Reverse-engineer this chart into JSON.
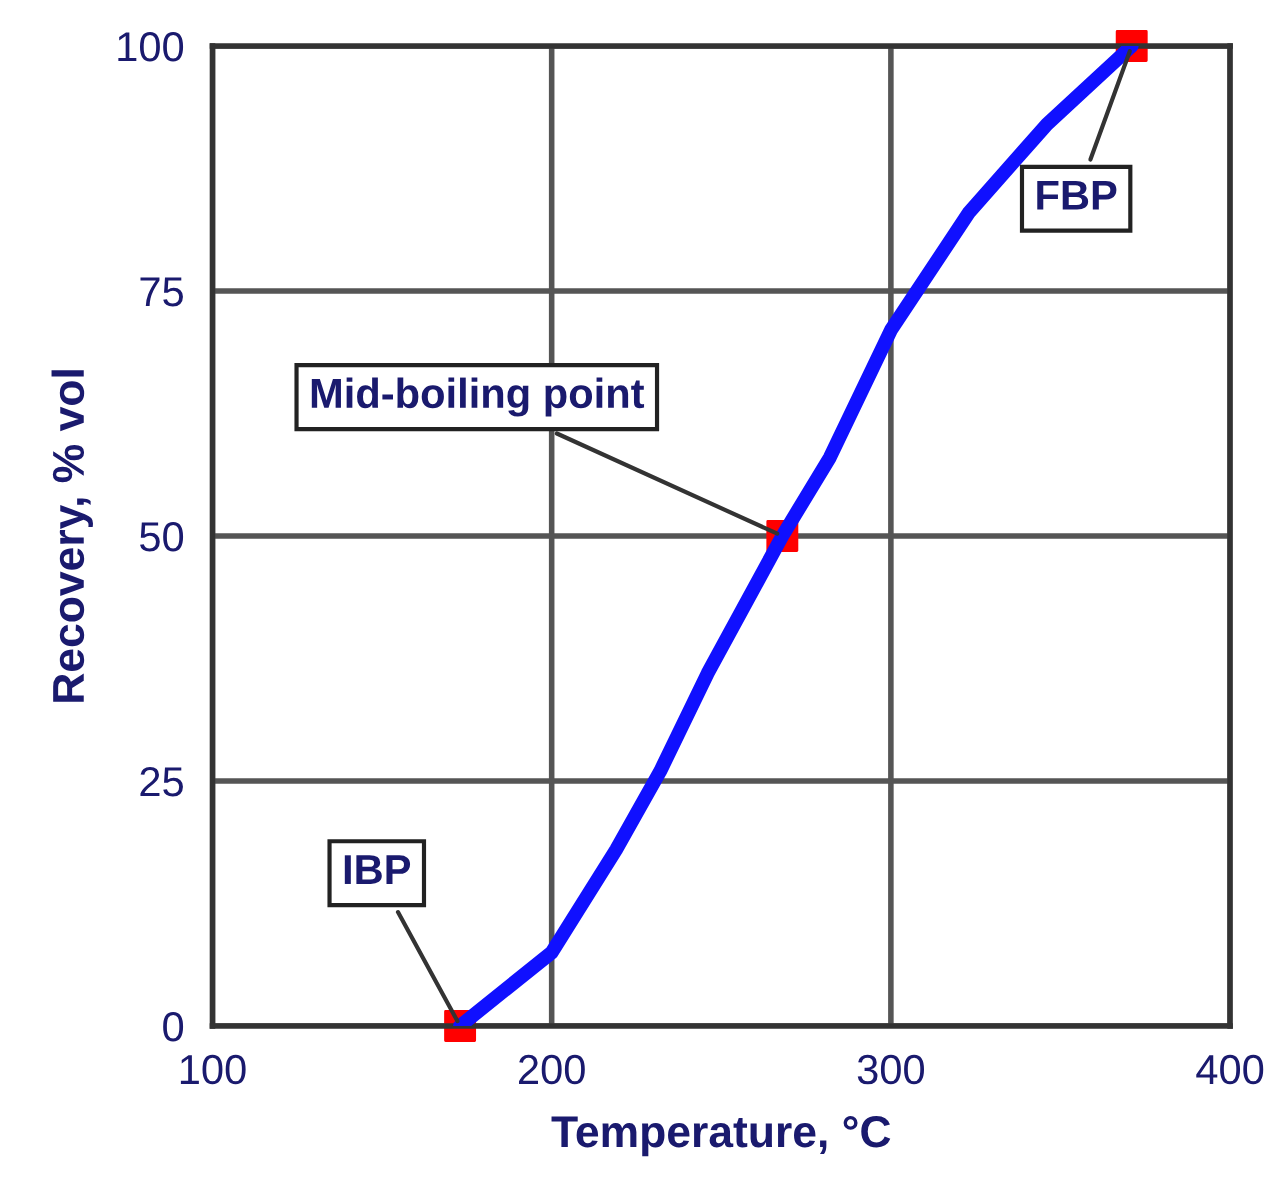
{
  "chart_data": {
    "type": "line",
    "xlabel": "Temperature, °C",
    "ylabel": "Recovery, % vol",
    "xlim": [
      100,
      400
    ],
    "xticks": [
      100,
      200,
      300,
      400
    ],
    "ylim": [
      0,
      100
    ],
    "yticks": [
      0,
      25,
      50,
      75,
      100
    ],
    "grid": true,
    "series": [
      {
        "color": "#1010ff",
        "marker": "none",
        "x": [
          173,
          200,
          219,
          232,
          246,
          268,
          282,
          300,
          323,
          346,
          371
        ],
        "values": [
          0,
          7.5,
          18,
          26,
          36,
          50,
          58,
          71,
          83,
          92,
          100
        ]
      },
      {
        "type": "scatter",
        "color": "#ff0000",
        "marker": "square",
        "x": [
          173,
          268,
          371
        ],
        "values": [
          0,
          50,
          100
        ]
      }
    ],
    "annotations": [
      {
        "text": "IBP",
        "x": 173,
        "y": 0
      },
      {
        "text": "Mid-boiling point",
        "x": 268,
        "y": 50
      },
      {
        "text": "FBP",
        "x": 371,
        "y": 100
      }
    ]
  }
}
